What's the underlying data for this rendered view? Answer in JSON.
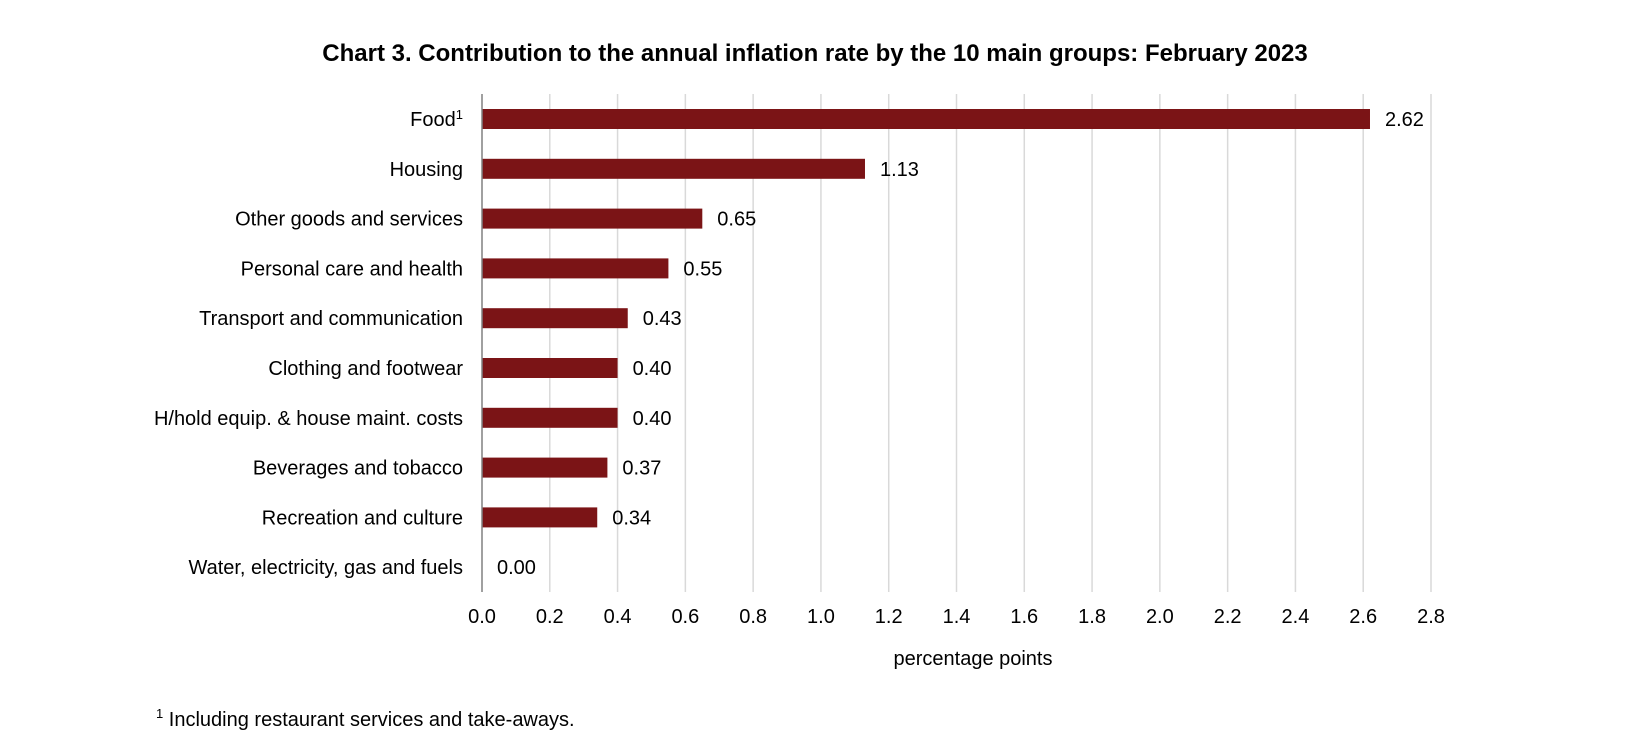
{
  "chart_data": {
    "type": "bar",
    "orientation": "horizontal",
    "title": "Chart 3.  Contribution to the annual inflation rate by the 10 main groups: February 2023",
    "xlabel": "percentage points",
    "ylabel": "",
    "xlim": [
      0,
      2.8
    ],
    "xticks": [
      "0.0",
      "0.2",
      "0.4",
      "0.6",
      "0.8",
      "1.0",
      "1.2",
      "1.4",
      "1.6",
      "1.8",
      "2.0",
      "2.2",
      "2.4",
      "2.6",
      "2.8"
    ],
    "grid": true,
    "bar_color": "#7b1416",
    "categories": [
      {
        "name": "Food",
        "sup": "1"
      },
      {
        "name": "Housing",
        "sup": ""
      },
      {
        "name": "Other goods and services",
        "sup": ""
      },
      {
        "name": "Personal care and health",
        "sup": ""
      },
      {
        "name": "Transport and communication",
        "sup": ""
      },
      {
        "name": "Clothing and footwear",
        "sup": ""
      },
      {
        "name": "H/hold equip. & house maint. costs",
        "sup": ""
      },
      {
        "name": "Beverages and tobacco",
        "sup": ""
      },
      {
        "name": "Recreation and culture",
        "sup": ""
      },
      {
        "name": "Water, electricity, gas and fuels",
        "sup": ""
      }
    ],
    "values": [
      2.62,
      1.13,
      0.65,
      0.55,
      0.43,
      0.4,
      0.4,
      0.37,
      0.34,
      0.0
    ],
    "value_labels": [
      "2.62",
      "1.13",
      "0.65",
      "0.55",
      "0.43",
      "0.40",
      "0.40",
      "0.37",
      "0.34",
      "0.00"
    ]
  },
  "footnote": {
    "marker": "1",
    "text": "Including restaurant services and take-aways."
  }
}
